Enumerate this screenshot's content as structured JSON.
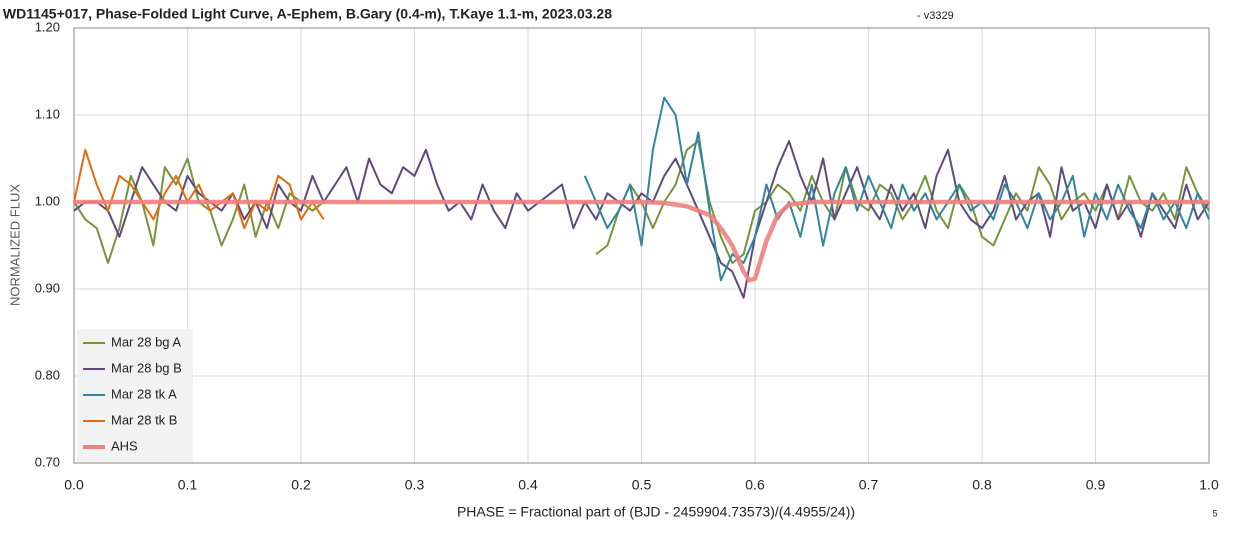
{
  "chart_data": {
    "type": "line",
    "title": "WD1145+017, Phase-Folded Light Curve, A-Ephem, B.Gary (0.4-m), T.Kaye 1.1-m, 2023.03.28",
    "subtitle": "- v3329",
    "x_label": "PHASE = Fractional part of (BJD - 2459904.73573)/(4.4955/24))",
    "y_label": "NORMALIZED FLUX",
    "annotation": "5",
    "xlim": [
      0,
      1
    ],
    "ylim": [
      0.7,
      1.2
    ],
    "xticks": [
      {
        "value": 0,
        "label": "0.0"
      },
      0.1,
      0.2,
      0.3,
      0.4,
      0.5,
      0.6,
      0.7,
      0.8,
      0.9,
      {
        "value": 1,
        "label": "1.0"
      }
    ],
    "yticks": [
      {
        "value": 0.7,
        "label": "0.70"
      },
      {
        "value": 0.8,
        "label": "0.80"
      },
      {
        "value": 0.9,
        "label": "0.90"
      },
      {
        "value": 1.0,
        "label": "1.00"
      },
      {
        "value": 1.1,
        "label": "1.10"
      },
      {
        "value": 1.2,
        "label": "1.20"
      }
    ],
    "grid": true,
    "legend": "lower left",
    "series": [
      {
        "name": "Mar 28 bg A",
        "color": "#77933c",
        "width": 2,
        "x": [
          0,
          0.01,
          0.02,
          0.03,
          0.04,
          0.05,
          0.06,
          0.07,
          0.08,
          0.09,
          0.1,
          0.11,
          0.12,
          0.13,
          0.14,
          0.15,
          0.16,
          0.17,
          0.18,
          0.19,
          0.2,
          0.21,
          0.22,
          0.34,
          0.46,
          0.47,
          0.48,
          0.49,
          0.5,
          0.51,
          0.52,
          0.53,
          0.54,
          0.55,
          0.56,
          0.57,
          0.58,
          0.59,
          0.6,
          0.61,
          0.62,
          0.63,
          0.64,
          0.65,
          0.66,
          0.67,
          0.68,
          0.69,
          0.7,
          0.71,
          0.72,
          0.73,
          0.74,
          0.75,
          0.76,
          0.77,
          0.78,
          0.79,
          0.8,
          0.81,
          0.82,
          0.83,
          0.84,
          0.85,
          0.86,
          0.87,
          0.88,
          0.89,
          0.9,
          0.91,
          0.92,
          0.93,
          0.94,
          0.95,
          0.96,
          0.97,
          0.98,
          0.99,
          1
        ],
        "values": [
          1.0,
          0.98,
          0.97,
          0.93,
          0.97,
          1.03,
          1.0,
          0.95,
          1.04,
          1.02,
          1.05,
          1.0,
          0.99,
          0.95,
          0.98,
          1.02,
          0.96,
          1.0,
          0.97,
          1.01,
          1.0,
          0.99,
          1.0,
          null,
          0.94,
          0.95,
          0.99,
          1.02,
          1.0,
          0.97,
          1.0,
          1.02,
          1.06,
          1.07,
          1.0,
          0.96,
          0.93,
          0.94,
          0.99,
          1.0,
          1.02,
          1.01,
          0.99,
          1.03,
          1.0,
          0.98,
          1.04,
          1.0,
          0.99,
          1.02,
          1.01,
          0.98,
          1.0,
          1.03,
          0.99,
          0.97,
          1.02,
          1.0,
          0.96,
          0.95,
          0.98,
          1.01,
          0.99,
          1.04,
          1.02,
          0.98,
          1.0,
          1.01,
          0.99,
          1.02,
          0.98,
          1.03,
          1.0,
          0.99,
          1.01,
          0.98,
          1.04,
          1.01,
          0.99
        ]
      },
      {
        "name": "Mar 28 bg B",
        "color": "#604a7b",
        "width": 2,
        "x": [
          0,
          0.01,
          0.02,
          0.03,
          0.04,
          0.05,
          0.06,
          0.07,
          0.08,
          0.09,
          0.1,
          0.11,
          0.12,
          0.13,
          0.14,
          0.15,
          0.16,
          0.17,
          0.18,
          0.19,
          0.2,
          0.21,
          0.22,
          0.23,
          0.24,
          0.25,
          0.26,
          0.27,
          0.28,
          0.29,
          0.3,
          0.31,
          0.32,
          0.33,
          0.34,
          0.35,
          0.36,
          0.37,
          0.38,
          0.39,
          0.4,
          0.41,
          0.42,
          0.43,
          0.44,
          0.45,
          0.46,
          0.47,
          0.48,
          0.49,
          0.5,
          0.51,
          0.52,
          0.53,
          0.54,
          0.55,
          0.56,
          0.57,
          0.58,
          0.59,
          0.6,
          0.61,
          0.62,
          0.63,
          0.64,
          0.65,
          0.66,
          0.67,
          0.68,
          0.69,
          0.7,
          0.71,
          0.72,
          0.73,
          0.74,
          0.75,
          0.76,
          0.77,
          0.78,
          0.79,
          0.8,
          0.81,
          0.82,
          0.83,
          0.84,
          0.85,
          0.86,
          0.87,
          0.88,
          0.89,
          0.9,
          0.91,
          0.92,
          0.93,
          0.94,
          0.95,
          0.96,
          0.97,
          0.98,
          0.99,
          1
        ],
        "values": [
          0.99,
          1.0,
          1.0,
          0.99,
          0.96,
          1.0,
          1.04,
          1.02,
          1.0,
          0.99,
          1.03,
          1.01,
          1.0,
          0.99,
          1.01,
          0.98,
          1.0,
          0.97,
          1.02,
          1.0,
          0.99,
          1.03,
          1.0,
          1.02,
          1.04,
          1.0,
          1.05,
          1.02,
          1.01,
          1.04,
          1.03,
          1.06,
          1.02,
          0.99,
          1.0,
          0.98,
          1.02,
          0.99,
          0.97,
          1.01,
          0.99,
          1.0,
          1.01,
          1.02,
          0.97,
          1.0,
          0.98,
          1.01,
          1.0,
          0.99,
          1.01,
          1.0,
          1.03,
          1.05,
          1.02,
          0.99,
          0.96,
          0.93,
          0.92,
          0.89,
          0.96,
          1.0,
          1.04,
          1.07,
          1.03,
          1.0,
          1.05,
          0.98,
          1.01,
          1.04,
          1.0,
          0.98,
          1.02,
          0.99,
          1.01,
          0.97,
          1.03,
          1.06,
          1.0,
          0.98,
          0.97,
          0.99,
          1.03,
          0.98,
          1.0,
          1.01,
          0.96,
          1.04,
          0.99,
          1.0,
          0.97,
          1.02,
          0.98,
          1.0,
          0.96,
          1.01,
          0.99,
          0.97,
          1.02,
          0.98,
          1.0
        ]
      },
      {
        "name": "Mar 28 tk A",
        "color": "#31859c",
        "width": 2,
        "x": [
          0.45,
          0.46,
          0.47,
          0.48,
          0.49,
          0.5,
          0.51,
          0.52,
          0.53,
          0.54,
          0.55,
          0.56,
          0.57,
          0.58,
          0.59,
          0.6,
          0.61,
          0.62,
          0.63,
          0.64,
          0.65,
          0.66,
          0.67,
          0.68,
          0.69,
          0.7,
          0.71,
          0.72,
          0.73,
          0.74,
          0.75,
          0.76,
          0.77,
          0.78,
          0.79,
          0.8,
          0.81,
          0.82,
          0.83,
          0.84,
          0.85,
          0.86,
          0.87,
          0.88,
          0.89,
          0.9,
          0.91,
          0.92,
          0.93,
          0.94,
          0.95,
          0.96,
          0.97,
          0.98,
          0.99,
          1
        ],
        "values": [
          1.03,
          1.0,
          0.97,
          0.99,
          1.02,
          0.95,
          1.06,
          1.12,
          1.1,
          1.02,
          1.08,
          0.99,
          0.91,
          0.94,
          0.93,
          0.96,
          1.02,
          0.98,
          1.0,
          0.96,
          1.02,
          0.95,
          1.01,
          1.04,
          0.99,
          1.03,
          1.0,
          0.97,
          1.02,
          0.99,
          1.01,
          0.98,
          1.0,
          1.02,
          0.99,
          1.0,
          0.98,
          1.02,
          1.0,
          0.97,
          1.01,
          0.98,
          1.0,
          1.03,
          0.96,
          1.01,
          0.98,
          1.02,
          0.99,
          0.97,
          1.01,
          0.98,
          1.0,
          0.97,
          1.01,
          0.98
        ]
      },
      {
        "name": "Mar 28 tk B",
        "color": "#e46c0a",
        "width": 2,
        "x": [
          0,
          0.01,
          0.02,
          0.03,
          0.04,
          0.05,
          0.06,
          0.07,
          0.08,
          0.09,
          0.1,
          0.11,
          0.12,
          0.13,
          0.14,
          0.15,
          0.16,
          0.17,
          0.18,
          0.19,
          0.2,
          0.21,
          0.22
        ],
        "values": [
          1.0,
          1.06,
          1.02,
          0.99,
          1.03,
          1.02,
          1.0,
          0.98,
          1.01,
          1.03,
          1.0,
          1.02,
          0.99,
          1.0,
          1.01,
          0.97,
          1.0,
          0.99,
          1.03,
          1.02,
          0.98,
          1.0,
          0.98
        ]
      },
      {
        "name": "AHS",
        "color": "#f08080",
        "width": 4.5,
        "x": [
          0,
          0.5,
          0.52,
          0.54,
          0.56,
          0.57,
          0.58,
          0.59,
          0.595,
          0.6,
          0.61,
          0.62,
          0.63,
          0.65,
          1
        ],
        "values": [
          1.0,
          1.0,
          0.999,
          0.995,
          0.985,
          0.97,
          0.95,
          0.92,
          0.91,
          0.912,
          0.955,
          0.985,
          0.997,
          1.0,
          1.0
        ]
      }
    ]
  }
}
